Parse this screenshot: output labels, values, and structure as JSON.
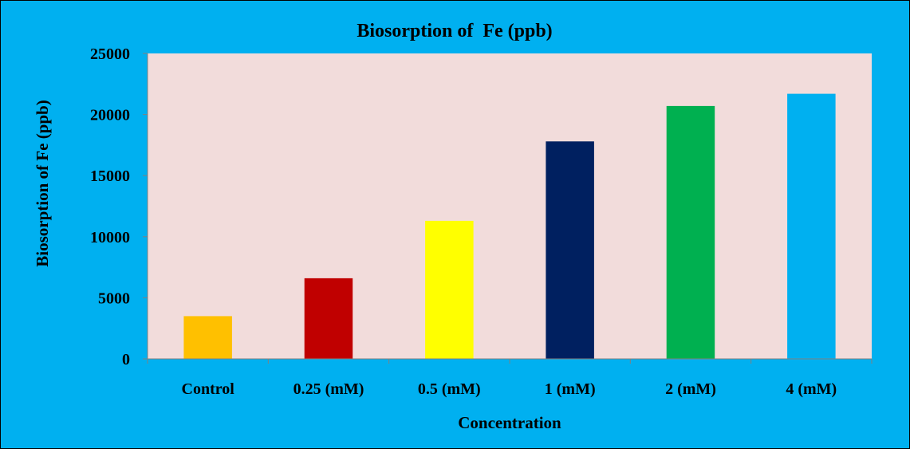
{
  "page_background": "#00b0f0",
  "plot_background": "#f2dcdb",
  "chart_data": {
    "type": "bar",
    "title": "Biosorption of  Fe (ppb)",
    "xlabel": "Concentration",
    "ylabel": "Biosorption of Fe (ppb)",
    "categories": [
      "Control",
      "0.25 (mM)",
      "0.5 (mM)",
      "1 (mM)",
      "2 (mM)",
      "4  (mM)"
    ],
    "values": [
      3500,
      6600,
      11300,
      17800,
      20700,
      21700
    ],
    "bar_colors": [
      "#ffc000",
      "#c00000",
      "#ffff00",
      "#002060",
      "#00b050",
      "#00b0f0"
    ],
    "ylim": [
      0,
      25000
    ],
    "yticks": [
      0,
      5000,
      10000,
      15000,
      20000,
      25000
    ],
    "grid": false,
    "legend": "none"
  }
}
